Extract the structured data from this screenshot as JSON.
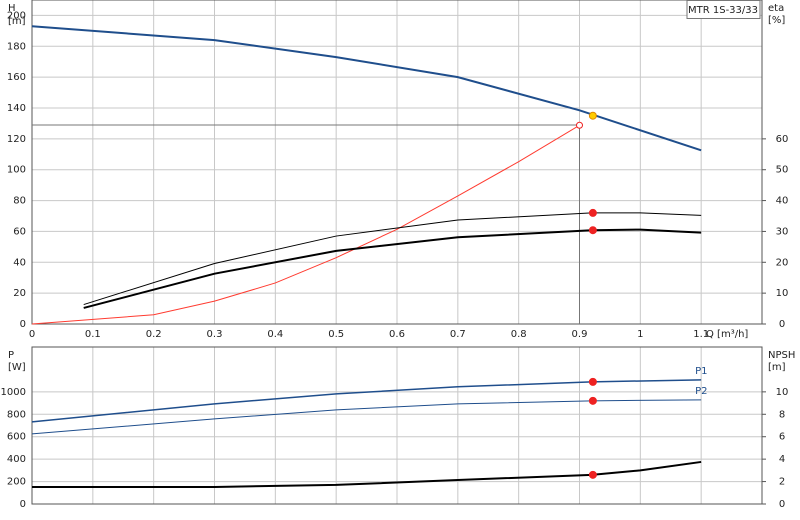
{
  "chart_data": [
    {
      "type": "line",
      "title": "MTR 1S-33/33",
      "ylabel": "H",
      "yunit": "[m]",
      "y2label": "eta",
      "y2unit": "[%]",
      "xlabel": "Q [m³/h]",
      "xlim": [
        0,
        1.2
      ],
      "xticks": [
        0,
        0.1,
        0.2,
        0.3,
        0.4,
        0.5,
        0.6,
        0.7,
        0.8,
        0.9,
        1.0,
        1.1
      ],
      "ylim": [
        0,
        210
      ],
      "yticks": [
        0,
        20,
        40,
        60,
        80,
        100,
        120,
        140,
        160,
        180,
        200
      ],
      "y2lim": [
        0,
        105
      ],
      "y2ticks": [
        0,
        10,
        20,
        30,
        40,
        50,
        60
      ],
      "grid": true,
      "series": [
        {
          "color": "#1f4e8c",
          "line_width": 2,
          "x": [
            0,
            0.3,
            0.5,
            0.7,
            0.9,
            1.1
          ],
          "values": [
            193,
            184,
            173,
            160,
            138.5,
            112.6
          ]
        },
        {
          "color": "#ff3b30",
          "line_width": 1,
          "axis": "y2",
          "x": [
            0,
            0.2,
            0.3,
            0.4,
            0.5,
            0.6,
            0.7,
            0.8,
            0.9
          ],
          "values": [
            0,
            3,
            7.4,
            13.3,
            21.5,
            30.7,
            41.5,
            52.6,
            64.4
          ]
        },
        {
          "color": "#000000",
          "line_width": 1,
          "axis": "y2",
          "x": [
            0.085,
            0.3,
            0.5,
            0.7,
            0.92,
            1.0,
            1.1
          ],
          "values": [
            6.3,
            19.6,
            28.5,
            33.7,
            36,
            36,
            35.2
          ]
        },
        {
          "color": "#000000",
          "line_width": 2,
          "axis": "y2",
          "x": [
            0.085,
            0.3,
            0.5,
            0.7,
            0.92,
            1.0,
            1.1
          ],
          "values": [
            5.2,
            16.3,
            23.7,
            28.1,
            30.4,
            30.6,
            29.6
          ]
        }
      ],
      "duty_lines": {
        "x": 0.9,
        "y": 129
      },
      "points": [
        {
          "x": 0.922,
          "y": 135,
          "color": "#ffcc00"
        },
        {
          "x": 0.922,
          "y": 36,
          "color": "#ee2222",
          "axis": "y2"
        },
        {
          "x": 0.922,
          "y": 30.4,
          "color": "#ee2222",
          "axis": "y2"
        },
        {
          "x": 0.9,
          "y": 64.4,
          "color": "none",
          "axis": "y2"
        }
      ]
    },
    {
      "type": "line",
      "ylabel": "P",
      "yunit": "[W]",
      "y2label": "NPSH",
      "y2unit": "[m]",
      "xlim": [
        0,
        1.2
      ],
      "xticks": [
        0,
        0.1,
        0.2,
        0.3,
        0.4,
        0.5,
        0.6,
        0.7,
        0.8,
        0.9,
        1.0,
        1.1
      ],
      "ylim": [
        0,
        1400
      ],
      "yticks": [
        0,
        200,
        400,
        600,
        800,
        1000
      ],
      "y2lim": [
        0,
        14
      ],
      "y2ticks": [
        0,
        2,
        4,
        6,
        8,
        10
      ],
      "grid": true,
      "series": [
        {
          "name": "P1",
          "color": "#1f4e8c",
          "line_width": 1.5,
          "x": [
            0,
            0.3,
            0.5,
            0.7,
            0.92,
            1.1
          ],
          "values": [
            732,
            893,
            982,
            1045,
            1089,
            1107
          ]
        },
        {
          "name": "P2",
          "color": "#1f4e8c",
          "line_width": 1,
          "x": [
            0,
            0.3,
            0.5,
            0.7,
            0.92,
            1.1
          ],
          "values": [
            625,
            759,
            839,
            893,
            920,
            929
          ]
        },
        {
          "color": "#000000",
          "line_width": 2,
          "axis": "y2",
          "x": [
            0,
            0.3,
            0.5,
            0.7,
            0.92,
            1.0,
            1.1
          ],
          "values": [
            1.52,
            1.52,
            1.7,
            2.14,
            2.6,
            3.0,
            3.75
          ]
        }
      ],
      "points": [
        {
          "x": 0.922,
          "y": 1089,
          "color": "#ee2222"
        },
        {
          "x": 0.922,
          "y": 920,
          "color": "#ee2222"
        },
        {
          "x": 0.922,
          "y": 2.6,
          "color": "#ee2222",
          "axis": "y2"
        }
      ]
    }
  ]
}
